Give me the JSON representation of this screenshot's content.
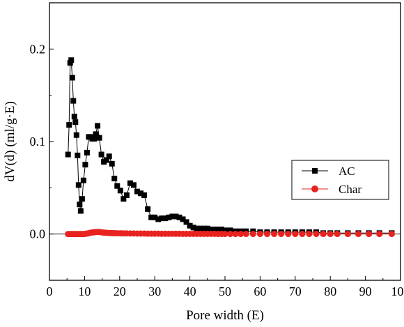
{
  "chart_data": {
    "type": "line",
    "title": "",
    "xlabel": "Pore width (E)",
    "ylabel": "dV(d)  (ml/g·E)",
    "xlim": [
      0,
      100
    ],
    "ylim": [
      -0.05,
      0.25
    ],
    "xticks": [
      0,
      10,
      20,
      30,
      40,
      50,
      60,
      70,
      80,
      90,
      100
    ],
    "xtick_labels": [
      "0",
      "10",
      "20",
      "30",
      "40",
      "50",
      "60",
      "70",
      "80",
      "90",
      "100"
    ],
    "yticks": [
      0.0,
      0.1,
      0.2
    ],
    "ytick_labels": [
      "0.0",
      "0.1",
      "0.2"
    ],
    "grid": false,
    "legend_position": "right",
    "series": [
      {
        "name": "AC",
        "color": "#000000",
        "marker": "square",
        "x": [
          5.3,
          5.6,
          5.9,
          6.2,
          6.5,
          6.8,
          7.1,
          7.4,
          7.7,
          8.0,
          8.3,
          8.6,
          8.9,
          9.3,
          9.7,
          10.2,
          10.7,
          11.2,
          11.7,
          12.2,
          12.7,
          13.2,
          13.7,
          14.2,
          14.8,
          15.5,
          16.2,
          17.0,
          17.8,
          18.5,
          19.3,
          20.2,
          21.1,
          22.0,
          23.0,
          24.0,
          25.0,
          26.0,
          27.0,
          28.0,
          29.0,
          30.0,
          31.0,
          32.0,
          33.0,
          34.0,
          35.0,
          36.0,
          37.0,
          38.0,
          39.0,
          40.0,
          41.0,
          42.0,
          43.0,
          44.0,
          45.0,
          46.0,
          47.0,
          48.0,
          49.0,
          50.0,
          51.5,
          53.0,
          54.5,
          56.0,
          58.0,
          60.0,
          62.0,
          64.0,
          66.0,
          68.0,
          70.0,
          72.0,
          74.0,
          76.0,
          78.0,
          80.0,
          82.0,
          85.0,
          88.0,
          91.0,
          94.0,
          97.5
        ],
        "values": [
          0.086,
          0.118,
          0.185,
          0.188,
          0.169,
          0.144,
          0.127,
          0.121,
          0.107,
          0.085,
          0.053,
          0.032,
          0.025,
          0.038,
          0.058,
          0.075,
          0.088,
          0.105,
          0.105,
          0.103,
          0.103,
          0.108,
          0.117,
          0.104,
          0.086,
          0.078,
          0.08,
          0.084,
          0.076,
          0.06,
          0.052,
          0.047,
          0.038,
          0.042,
          0.055,
          0.053,
          0.046,
          0.044,
          0.042,
          0.027,
          0.018,
          0.018,
          0.016,
          0.017,
          0.017,
          0.018,
          0.019,
          0.019,
          0.018,
          0.016,
          0.013,
          0.009,
          0.007,
          0.006,
          0.006,
          0.006,
          0.006,
          0.005,
          0.005,
          0.005,
          0.005,
          0.004,
          0.004,
          0.003,
          0.003,
          0.003,
          0.003,
          0.002,
          0.002,
          0.002,
          0.002,
          0.002,
          0.002,
          0.002,
          0.002,
          0.002,
          0.001,
          0.001,
          0.001,
          0.001,
          0.001,
          0.001,
          0.001,
          0.001
        ]
      },
      {
        "name": "Char",
        "color": "#e8231f",
        "marker": "circle",
        "x": [
          5.3,
          5.8,
          6.3,
          6.8,
          7.3,
          7.8,
          8.3,
          8.8,
          9.3,
          9.8,
          10.3,
          10.8,
          11.3,
          11.8,
          12.3,
          12.8,
          13.3,
          13.8,
          14.3,
          14.8,
          15.3,
          15.8,
          16.3,
          16.8,
          17.3,
          17.8,
          18.3,
          18.8,
          19.5,
          20.3,
          21.1,
          22.0,
          23.0,
          24.0,
          25.0,
          26.0,
          27.0,
          28.0,
          29.0,
          30.0,
          31.0,
          32.0,
          33.0,
          34.0,
          35.0,
          36.0,
          37.0,
          38.0,
          39.0,
          40.0,
          41.0,
          42.0,
          43.0,
          44.0,
          45.0,
          46.0,
          47.0,
          48.0,
          49.0,
          50.0,
          51.5,
          53.0,
          54.5,
          56.0,
          58.0,
          60.0,
          62.0,
          64.0,
          66.0,
          68.0,
          70.0,
          72.0,
          74.0,
          76.0,
          78.0,
          80.0,
          82.0,
          85.0,
          88.0,
          91.0,
          94.0,
          97.5
        ],
        "values": [
          0.0,
          0.0,
          0.0,
          0.0,
          0.0,
          0.0,
          0.0,
          0.0,
          0.0,
          0.0,
          0.0003,
          0.0006,
          0.001,
          0.0014,
          0.0018,
          0.002,
          0.0022,
          0.0023,
          0.0022,
          0.0019,
          0.0016,
          0.0014,
          0.0013,
          0.0012,
          0.0011,
          0.001,
          0.0009,
          0.0009,
          0.0008,
          0.0008,
          0.0007,
          0.0007,
          0.0006,
          0.0006,
          0.0005,
          0.0005,
          0.0005,
          0.0004,
          0.0004,
          0.0004,
          0.0004,
          0.0003,
          0.0003,
          0.0003,
          0.0003,
          0.0003,
          0.0003,
          0.0002,
          0.0002,
          0.0002,
          0.0002,
          0.0002,
          0.0002,
          0.0002,
          0.0002,
          0.0002,
          0.0002,
          0.0001,
          0.0001,
          0.0001,
          0.0001,
          0.0001,
          0.0001,
          0.0001,
          0.0001,
          0.0001,
          0.0001,
          0.0001,
          0.0001,
          0.0001,
          0.0001,
          0.0001,
          0.0001,
          0.0001,
          0.0001,
          0.0001,
          0.0001,
          0.0001,
          0.0001,
          0.0001,
          0.0001,
          0.0001
        ]
      }
    ]
  }
}
